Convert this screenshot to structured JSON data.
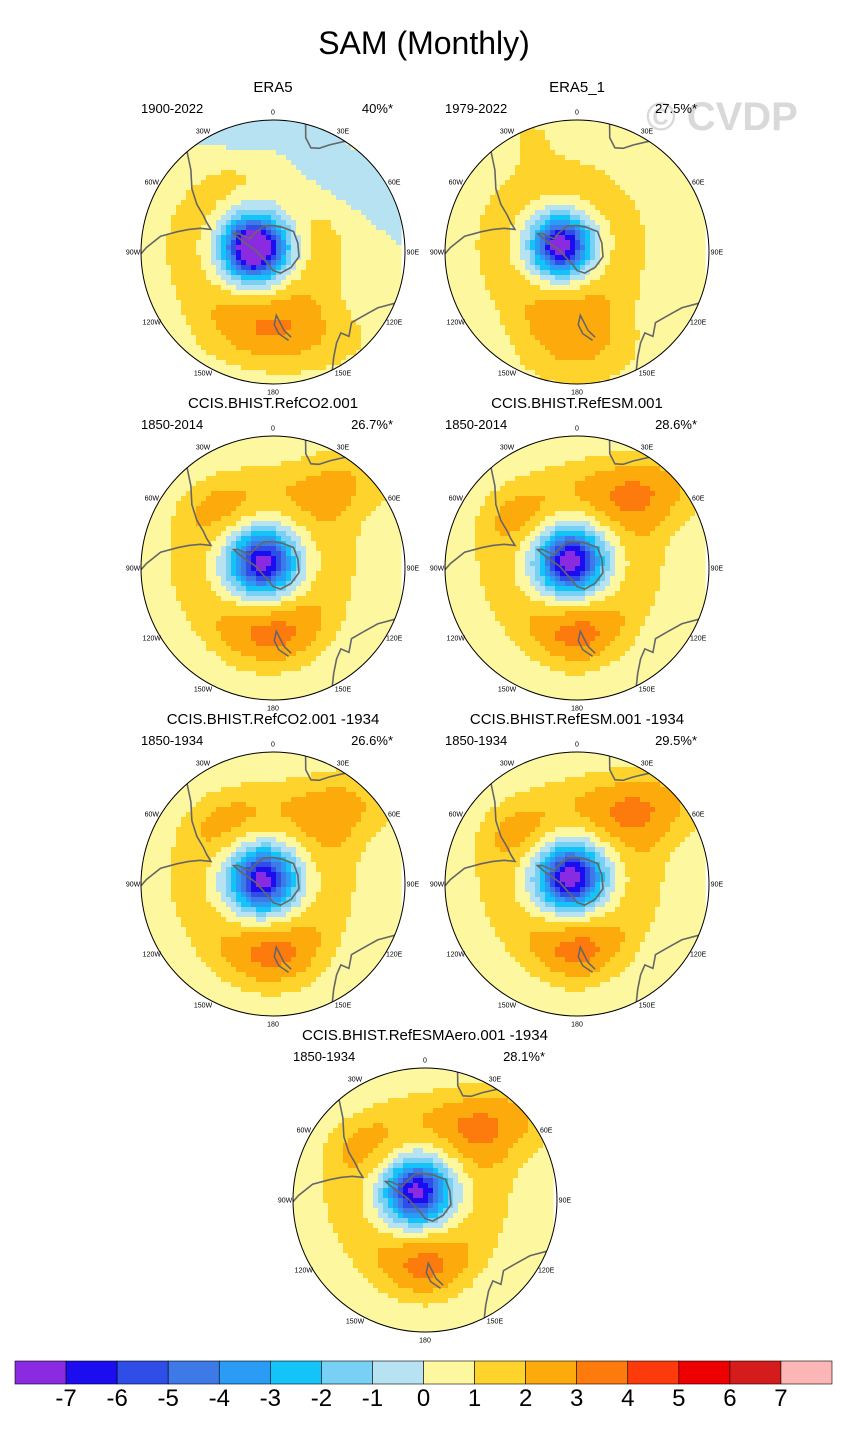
{
  "title": "SAM (Monthly)",
  "watermark": "© CVDP",
  "chart_data": {
    "type": "polar-contour-maps",
    "description": "Southern Annular Mode (SAM) monthly pattern, polar stereographic maps of the Southern Hemisphere",
    "lon_labels": [
      "0",
      "30E",
      "60E",
      "90E",
      "120E",
      "150E",
      "180",
      "150W",
      "120W",
      "90W",
      "60W",
      "30W"
    ],
    "colorbar": {
      "labels": [
        "-7",
        "-6",
        "-5",
        "-4",
        "-3",
        "-2",
        "-1",
        "0",
        "1",
        "2",
        "3",
        "4",
        "5",
        "6",
        "7"
      ],
      "colors": [
        "#8a2be2",
        "#1c0cf0",
        "#2f4ee8",
        "#3d7ae8",
        "#2a9cf5",
        "#14c4f8",
        "#78d0f5",
        "#b6e2f2",
        "#fdf7a0",
        "#fdd32c",
        "#fdab0c",
        "#fd7a0c",
        "#fd3a0c",
        "#ee0000",
        "#d41c1c",
        "#fdb6b6"
      ]
    },
    "panels": [
      {
        "name": "ERA5",
        "period": "1900-2022",
        "pct": "40%*",
        "shift": [
          -0.14,
          0.03
        ],
        "strength": 1.25,
        "ext": 0.95,
        "pos": [
          [
            0.82,
            0.88,
            0.38,
            0.4,
            0.5
          ],
          [
            -0.22,
            1.0,
            0.32,
            0.22,
            -0.9
          ],
          [
            0.1,
            -0.65,
            0.65,
            0.3,
            2.15
          ],
          [
            0.3,
            0.55,
            0.5,
            0.3,
            -1.0
          ]
        ]
      },
      {
        "name": "ERA5_1",
        "period": "1979-2022",
        "pct": "27.5%*",
        "shift": [
          -0.12,
          0.05
        ],
        "strength": 1.0,
        "ext": 0.9,
        "pos": [
          [
            0.85,
            0.88,
            0.3,
            0.35,
            0.85
          ],
          [
            -0.35,
            0.9,
            0.25,
            0.22,
            1.0
          ],
          [
            0.0,
            -0.7,
            0.5,
            0.35,
            2.2
          ]
        ]
      },
      {
        "name": "CCIS.BHIST.RefCO2.001",
        "period": "1850-2014",
        "pct": "26.7%*",
        "shift": [
          -0.08,
          0.04
        ],
        "strength": 0.95,
        "ext": 1.0,
        "pos": [
          [
            0.55,
            0.65,
            0.4,
            0.3,
            2.0
          ],
          [
            -0.4,
            0.45,
            0.35,
            0.25,
            1.0
          ],
          [
            0.0,
            -0.5,
            0.4,
            0.3,
            2.0
          ]
        ]
      },
      {
        "name": "CCIS.BHIST.RefESM.001",
        "period": "1850-2014",
        "pct": "28.6%*",
        "shift": [
          -0.05,
          0.05
        ],
        "strength": 1.0,
        "ext": 1.0,
        "pos": [
          [
            0.55,
            0.6,
            0.45,
            0.3,
            2.6
          ],
          [
            -0.45,
            0.4,
            0.35,
            0.25,
            1.0
          ],
          [
            0.0,
            -0.5,
            0.35,
            0.3,
            2.0
          ]
        ]
      },
      {
        "name": "CCIS.BHIST.RefCO2.001 -1934",
        "period": "1850-1934",
        "pct": "26.6%*",
        "shift": [
          -0.08,
          0.03
        ],
        "strength": 0.95,
        "ext": 1.0,
        "pos": [
          [
            0.55,
            0.6,
            0.4,
            0.3,
            2.2
          ],
          [
            -0.35,
            0.45,
            0.32,
            0.26,
            1.0
          ],
          [
            0.0,
            -0.55,
            0.4,
            0.3,
            2.0
          ]
        ]
      },
      {
        "name": "CCIS.BHIST.RefESM.001 -1934",
        "period": "1850-1934",
        "pct": "29.5%*",
        "shift": [
          -0.05,
          0.05
        ],
        "strength": 1.0,
        "ext": 1.0,
        "pos": [
          [
            0.55,
            0.6,
            0.45,
            0.3,
            2.6
          ],
          [
            -0.45,
            0.4,
            0.35,
            0.25,
            1.0
          ],
          [
            0.0,
            -0.5,
            0.35,
            0.3,
            2.0
          ]
        ]
      },
      {
        "name": "CCIS.BHIST.RefESMAero.001 -1934",
        "period": "1850-1934",
        "pct": "28.1%*",
        "shift": [
          -0.06,
          0.06
        ],
        "strength": 0.95,
        "ext": 1.0,
        "pos": [
          [
            0.55,
            0.6,
            0.45,
            0.3,
            2.6
          ],
          [
            -0.45,
            0.4,
            0.35,
            0.25,
            1.0
          ],
          [
            0.0,
            -0.5,
            0.35,
            0.3,
            2.0
          ]
        ]
      }
    ]
  }
}
